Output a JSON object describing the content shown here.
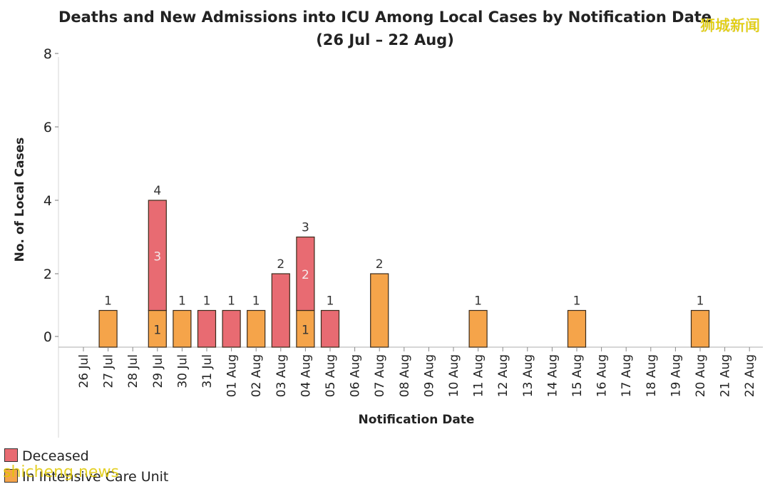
{
  "chart_data": {
    "type": "bar",
    "stacked": true,
    "title": "Deaths and New Admissions into ICU Among Local Cases by Notification Date",
    "subtitle": "(26 Jul – 22 Aug)",
    "xlabel": "Notification Date",
    "ylabel": "No. of Local Cases",
    "ylim": [
      0,
      8
    ],
    "yticks": [
      "8",
      "6",
      "4",
      "2",
      "0"
    ],
    "categories": [
      "26 Jul",
      "27 Jul",
      "28 Jul",
      "29 Jul",
      "30 Jul",
      "31 Jul",
      "01 Aug",
      "02 Aug",
      "03 Aug",
      "04 Aug",
      "05 Aug",
      "06 Aug",
      "07 Aug",
      "08 Aug",
      "09 Aug",
      "10 Aug",
      "11 Aug",
      "12 Aug",
      "13 Aug",
      "14 Aug",
      "15 Aug",
      "16 Aug",
      "17 Aug",
      "18 Aug",
      "19 Aug",
      "20 Aug",
      "21 Aug",
      "22 Aug"
    ],
    "series": [
      {
        "name": "In Intensive Care Unit",
        "color": "#f5a44a",
        "values": [
          0,
          1,
          0,
          1,
          1,
          0,
          0,
          1,
          0,
          1,
          0,
          0,
          2,
          0,
          0,
          0,
          1,
          0,
          0,
          0,
          1,
          0,
          0,
          0,
          0,
          1,
          0,
          0
        ]
      },
      {
        "name": "Deceased",
        "color": "#e86b72",
        "values": [
          0,
          0,
          0,
          3,
          0,
          1,
          1,
          0,
          2,
          2,
          1,
          0,
          0,
          0,
          0,
          0,
          0,
          0,
          0,
          0,
          0,
          0,
          0,
          0,
          0,
          0,
          0,
          0
        ]
      }
    ],
    "inner_labels": [
      {
        "category": "29 Jul",
        "series": "In Intensive Care Unit",
        "text": "1"
      },
      {
        "category": "29 Jul",
        "series": "Deceased",
        "text": "3"
      },
      {
        "category": "04 Aug",
        "series": "In Intensive Care Unit",
        "text": "1"
      },
      {
        "category": "04 Aug",
        "series": "Deceased",
        "text": "2"
      }
    ],
    "legend_position": "bottom-left",
    "grid": false
  },
  "watermarks": {
    "top_right": "狮城新闻",
    "bottom_left": "shicheng.news"
  }
}
